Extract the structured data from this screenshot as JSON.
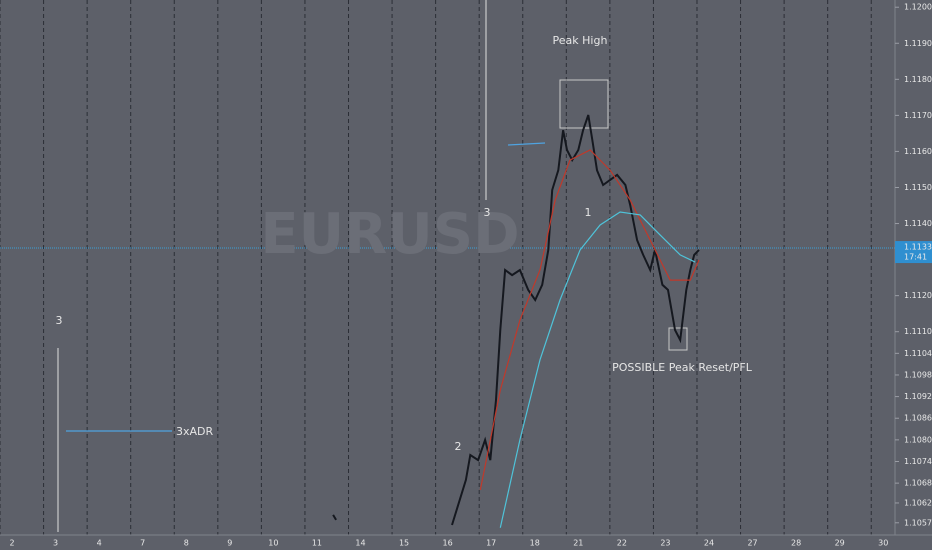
{
  "chart_data": {
    "type": "line",
    "watermark": "EURUSD",
    "categories": [
      "2",
      "3",
      "4",
      "7",
      "8",
      "9",
      "10",
      "11",
      "14",
      "15",
      "16",
      "17",
      "18",
      "21",
      "22",
      "23",
      "24",
      "27",
      "28",
      "29",
      "30"
    ],
    "xlim": [
      -0.276,
      20.27
    ],
    "ylim": [
      1.1055,
      1.1202
    ],
    "yticks": [
      {
        "value": 1.12,
        "label": "1.12000"
      },
      {
        "value": 1.119,
        "label": "1.11900"
      },
      {
        "value": 1.118,
        "label": "1.11800"
      },
      {
        "value": 1.117,
        "label": "1.11700"
      },
      {
        "value": 1.116,
        "label": "1.11600"
      },
      {
        "value": 1.115,
        "label": "1.11500"
      },
      {
        "value": 1.114,
        "label": "1.11400"
      },
      {
        "value": 1.112,
        "label": "1.11200"
      },
      {
        "value": 1.111,
        "label": "1.11100"
      },
      {
        "value": 1.1104,
        "label": "1.11040"
      },
      {
        "value": 1.1098,
        "label": "1.10980"
      },
      {
        "value": 1.1092,
        "label": "1.10920"
      },
      {
        "value": 1.1086,
        "label": "1.10860"
      },
      {
        "value": 1.108,
        "label": "1.10800"
      },
      {
        "value": 1.1074,
        "label": "1.10740"
      },
      {
        "value": 1.1068,
        "label": "1.10680"
      },
      {
        "value": 1.10625,
        "label": "1.10625"
      },
      {
        "value": 1.1057,
        "label": "1.10570"
      }
    ],
    "last_price": {
      "value": 1.11332,
      "label": "1.11332"
    },
    "countdown": "17:41",
    "series": [
      {
        "color": "#15181f",
        "x": [
          7.37,
          7.44,
          9.0,
          10.1,
          10.42,
          10.52,
          10.7,
          10.86,
          10.98,
          11.11,
          11.21,
          11.32,
          11.48,
          11.66,
          11.85,
          12.01,
          12.17,
          12.31,
          12.4,
          12.54,
          12.65,
          12.74,
          12.86,
          13.0,
          13.11,
          13.23,
          13.32,
          13.43,
          13.57,
          13.73,
          13.89,
          14.08,
          14.19,
          14.35,
          14.49,
          14.65,
          14.76,
          14.93,
          15.06,
          15.22,
          15.34,
          15.48,
          15.57,
          15.66,
          15.77
        ],
        "values": [
          1.10592,
          1.10578,
          null,
          1.10564,
          1.10689,
          1.10758,
          1.10744,
          1.108,
          1.10744,
          1.10911,
          1.11105,
          1.11271,
          1.11257,
          1.11271,
          1.11216,
          1.11188,
          1.1123,
          1.11327,
          1.11493,
          1.11548,
          1.11659,
          1.11604,
          1.11576,
          1.11604,
          1.11659,
          1.11701,
          1.11632,
          1.11548,
          1.11507,
          1.11521,
          1.11535,
          1.11507,
          1.11451,
          1.11354,
          1.11313,
          1.11271,
          1.11327,
          1.1123,
          1.11216,
          1.11105,
          1.11077,
          1.11216,
          1.11271,
          1.11313,
          1.11327
        ]
      },
      {
        "color": "#c0392b",
        "x": [
          10.75,
          11.21,
          11.66,
          12.12,
          12.47,
          12.81,
          13.27,
          13.73,
          14.19,
          14.65,
          15.11,
          15.57,
          15.77
        ],
        "values": [
          1.10661,
          1.10938,
          1.11132,
          1.11271,
          1.11465,
          1.11576,
          1.11604,
          1.11548,
          1.11465,
          1.11354,
          1.11243,
          1.11243,
          1.11299
        ]
      },
      {
        "color": "#4fc3d9",
        "x": [
          11.21,
          11.66,
          12.12,
          12.58,
          13.04,
          13.5,
          13.96,
          14.42,
          14.88,
          15.34,
          15.68
        ],
        "values": [
          1.10556,
          1.108,
          1.11022,
          1.11188,
          1.11327,
          1.11396,
          1.11432,
          1.11424,
          1.11368,
          1.11313,
          1.11293
        ]
      }
    ],
    "annotations": {
      "peak_high": "Peak High",
      "wave_3_top": "3",
      "wave_1": "1",
      "wave_2": "2",
      "wave_3_left": "3",
      "adr": "3xADR",
      "reset": "POSSIBLE Peak Reset/PFL"
    }
  }
}
